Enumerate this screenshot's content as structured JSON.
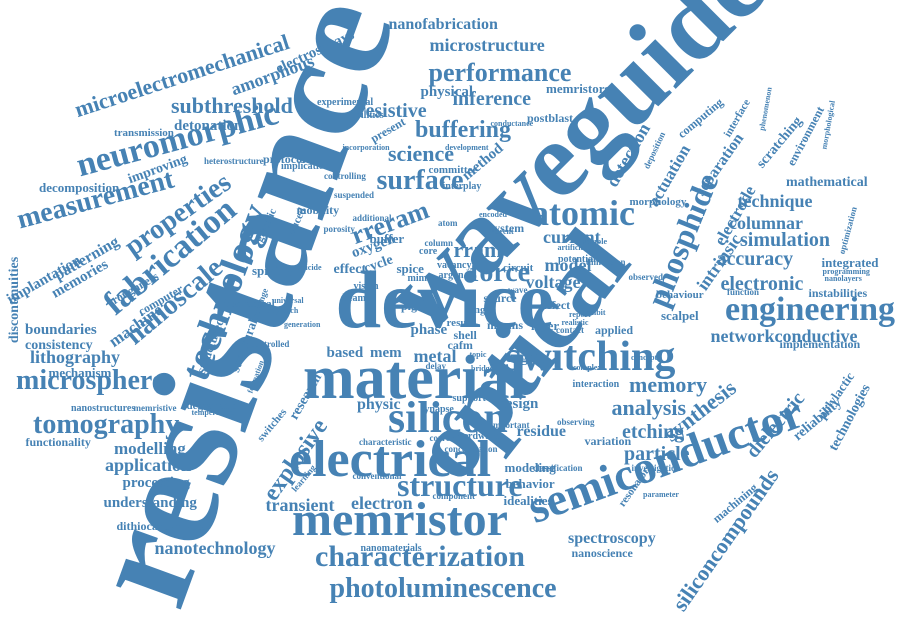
{
  "color": "#4682b4",
  "words": [
    {
      "id": "w0",
      "text": "resistance",
      "weight": 1.0
    },
    {
      "id": "w1",
      "text": "waveguide",
      "weight": 0.94
    },
    {
      "id": "w2",
      "text": "device",
      "weight": 0.9
    },
    {
      "id": "w3",
      "text": "optical",
      "weight": 0.86
    },
    {
      "id": "w4",
      "text": "material",
      "weight": 0.72
    },
    {
      "id": "w5",
      "text": "memristor",
      "weight": 0.68
    },
    {
      "id": "w6",
      "text": "semiconductor",
      "weight": 0.68
    },
    {
      "id": "w7",
      "text": "electrical",
      "weight": 0.62
    },
    {
      "id": "w8",
      "text": "silicon",
      "weight": 0.56
    },
    {
      "id": "w9",
      "text": "switching",
      "weight": 0.54
    },
    {
      "id": "w10",
      "text": "technology",
      "weight": 0.52
    },
    {
      "id": "w11",
      "text": "engineering",
      "weight": 0.5
    },
    {
      "id": "w12",
      "text": "neuromorphic",
      "weight": 0.5
    },
    {
      "id": "w13",
      "text": "structure",
      "weight": 0.5
    },
    {
      "id": "w14",
      "text": "characterization",
      "weight": 0.48
    },
    {
      "id": "w15",
      "text": "atomic",
      "weight": 0.48
    },
    {
      "id": "w16",
      "text": "phosphide",
      "weight": 0.46
    },
    {
      "id": "w17",
      "text": "fabrication",
      "weight": 0.46
    },
    {
      "id": "w18",
      "text": "microsphere",
      "weight": 0.44
    },
    {
      "id": "w19",
      "text": "photoluminescence",
      "weight": 0.42
    },
    {
      "id": "w20",
      "text": "nanoscale",
      "weight": 0.42
    },
    {
      "id": "w21",
      "text": "measurement",
      "weight": 0.42
    },
    {
      "id": "w22",
      "text": "properties",
      "weight": 0.42
    },
    {
      "id": "w23",
      "text": "microelectromechanical",
      "weight": 0.4
    },
    {
      "id": "w24",
      "text": "tomography",
      "weight": 0.4
    },
    {
      "id": "w25",
      "text": "performance",
      "weight": 0.38
    },
    {
      "id": "w26",
      "text": "surface",
      "weight": 0.38
    },
    {
      "id": "w27",
      "text": "force",
      "weight": 0.36
    },
    {
      "id": "w28",
      "text": "siliconcompounds",
      "weight": 0.34
    },
    {
      "id": "w29",
      "text": "rreram",
      "weight": 0.34
    },
    {
      "id": "w30",
      "text": "explosive",
      "weight": 0.34
    },
    {
      "id": "w31",
      "text": "synthesis",
      "weight": 0.32
    },
    {
      "id": "w32",
      "text": "subthreshold",
      "weight": 0.32
    },
    {
      "id": "w33",
      "text": "buffering",
      "weight": 0.32
    },
    {
      "id": "w34",
      "text": "memory",
      "weight": 0.3
    },
    {
      "id": "w35",
      "text": "analysis",
      "weight": 0.3
    },
    {
      "id": "w36",
      "text": "science",
      "weight": 0.3
    },
    {
      "id": "w37",
      "text": "microstructure",
      "weight": 0.28
    },
    {
      "id": "w38",
      "text": "electronic",
      "weight": 0.28
    },
    {
      "id": "w39",
      "text": "resistive",
      "weight": 0.28
    },
    {
      "id": "w40",
      "text": "inference",
      "weight": 0.28
    },
    {
      "id": "w41",
      "text": "etching",
      "weight": 0.28
    },
    {
      "id": "w42",
      "text": "rram",
      "weight": 0.28
    },
    {
      "id": "w43",
      "text": "amorphous",
      "weight": 0.27
    },
    {
      "id": "w44",
      "text": "simulation",
      "weight": 0.27
    },
    {
      "id": "w45",
      "text": "accuracy",
      "weight": 0.26
    },
    {
      "id": "w46",
      "text": "dielectric",
      "weight": 0.26
    },
    {
      "id": "w47",
      "text": "columnar",
      "weight": 0.26
    },
    {
      "id": "w48",
      "text": "networkconductive",
      "weight": 0.26
    },
    {
      "id": "w49",
      "text": "particle",
      "weight": 0.26
    },
    {
      "id": "w50",
      "text": "nanofabrication",
      "weight": 0.25
    },
    {
      "id": "w51",
      "text": "detection",
      "weight": 0.25
    },
    {
      "id": "w52",
      "text": "actuation",
      "weight": 0.24
    },
    {
      "id": "w53",
      "text": "intrinsic",
      "weight": 0.24
    },
    {
      "id": "w54",
      "text": "electrode",
      "weight": 0.24
    },
    {
      "id": "w55",
      "text": "technique",
      "weight": 0.24
    },
    {
      "id": "w56",
      "text": "lithography",
      "weight": 0.24
    },
    {
      "id": "w57",
      "text": "machine",
      "weight": 0.24
    },
    {
      "id": "w58",
      "text": "application",
      "weight": 0.24
    },
    {
      "id": "w59",
      "text": "modelling",
      "weight": 0.24
    },
    {
      "id": "w60",
      "text": "mathematical",
      "weight": 0.22
    },
    {
      "id": "w61",
      "text": "spectroscopy",
      "weight": 0.22
    },
    {
      "id": "w62",
      "text": "nanotechnology",
      "weight": 0.22
    },
    {
      "id": "w63",
      "text": "transient",
      "weight": 0.22
    },
    {
      "id": "w64",
      "text": "electron",
      "weight": 0.22
    },
    {
      "id": "w65",
      "text": "current",
      "weight": 0.22
    },
    {
      "id": "w66",
      "text": "model",
      "weight": 0.22
    },
    {
      "id": "w67",
      "text": "voltage",
      "weight": 0.22
    },
    {
      "id": "w68",
      "text": "metal",
      "weight": 0.22
    },
    {
      "id": "w69",
      "text": "boundaries",
      "weight": 0.2
    },
    {
      "id": "w70",
      "text": "memories",
      "weight": 0.2
    },
    {
      "id": "w71",
      "text": "separation",
      "weight": 0.2
    },
    {
      "id": "w72",
      "text": "processing",
      "weight": 0.2
    },
    {
      "id": "w73",
      "text": "understanding",
      "weight": 0.2
    },
    {
      "id": "w74",
      "text": "residue",
      "weight": 0.2
    },
    {
      "id": "w75",
      "text": "physic",
      "weight": 0.2
    },
    {
      "id": "w76",
      "text": "detonation",
      "weight": 0.19
    },
    {
      "id": "w77",
      "text": "physical",
      "weight": 0.19
    },
    {
      "id": "w78",
      "text": "memristors",
      "weight": 0.17
    },
    {
      "id": "w79",
      "text": "electrosprays",
      "weight": 0.19
    },
    {
      "id": "w80",
      "text": "patterning",
      "weight": 0.19
    },
    {
      "id": "w81",
      "text": "consistency",
      "weight": 0.18
    },
    {
      "id": "w82",
      "text": "implantation",
      "weight": 0.18
    },
    {
      "id": "w83",
      "text": "reliability",
      "weight": 0.18
    },
    {
      "id": "w84",
      "text": "technologies",
      "weight": 0.17
    },
    {
      "id": "w85",
      "text": "polylactic",
      "weight": 0.17
    },
    {
      "id": "w86",
      "text": "scratching",
      "weight": 0.18
    },
    {
      "id": "w87",
      "text": "environment",
      "weight": 0.17
    },
    {
      "id": "w88",
      "text": "mechanism",
      "weight": 0.17
    },
    {
      "id": "w89",
      "text": "integrated",
      "weight": 0.18
    },
    {
      "id": "w90",
      "text": "instabilities",
      "weight": 0.17
    },
    {
      "id": "w91",
      "text": "implementation",
      "weight": 0.17
    },
    {
      "id": "w92",
      "text": "discontinuities",
      "weight": 0.17
    },
    {
      "id": "w93",
      "text": "decomposition",
      "weight": 0.16
    },
    {
      "id": "w94",
      "text": "improving",
      "weight": 0.17
    },
    {
      "id": "w95",
      "text": "functionality",
      "weight": 0.16
    },
    {
      "id": "w96",
      "text": "based",
      "weight": 0.2
    },
    {
      "id": "w97",
      "text": "mem",
      "weight": 0.2
    },
    {
      "id": "w98",
      "text": "phase",
      "weight": 0.2
    },
    {
      "id": "w99",
      "text": "edge",
      "weight": 0.2
    },
    {
      "id": "w100",
      "text": "design",
      "weight": 0.2
    },
    {
      "id": "w101",
      "text": "method",
      "weight": 0.2
    },
    {
      "id": "w102",
      "text": "machining",
      "weight": 0.17
    },
    {
      "id": "w103",
      "text": "resonator",
      "weight": 0.16
    },
    {
      "id": "w104",
      "text": "dithiocarbamates",
      "weight": 0.15
    },
    {
      "id": "w105",
      "text": "nanoscience",
      "weight": 0.16
    },
    {
      "id": "w106",
      "text": "modeling",
      "weight": 0.17
    },
    {
      "id": "w107",
      "text": "behavior",
      "weight": 0.17
    },
    {
      "id": "w108",
      "text": "idealities",
      "weight": 0.17
    },
    {
      "id": "w109",
      "text": "research",
      "weight": 0.17
    },
    {
      "id": "w110",
      "text": "scalpel",
      "weight": 0.17
    },
    {
      "id": "w111",
      "text": "applied",
      "weight": 0.16
    },
    {
      "id": "w112",
      "text": "variation",
      "weight": 0.16
    },
    {
      "id": "w113",
      "text": "structured",
      "weight": 0.16
    },
    {
      "id": "w114",
      "text": "oxygen",
      "weight": 0.17
    },
    {
      "id": "w115",
      "text": "spice",
      "weight": 0.16
    },
    {
      "id": "w116",
      "text": "spiking",
      "weight": 0.15
    },
    {
      "id": "w117",
      "text": "cycle",
      "weight": 0.16
    },
    {
      "id": "w118",
      "text": "effect",
      "weight": 0.16
    },
    {
      "id": "w119",
      "text": "mobility",
      "weight": 0.14
    },
    {
      "id": "w120",
      "text": "protocol",
      "weight": 0.14
    },
    {
      "id": "w121",
      "text": "present",
      "weight": 0.15
    },
    {
      "id": "w122",
      "text": "transmission",
      "weight": 0.14
    },
    {
      "id": "w123",
      "text": "postblast",
      "weight": 0.14
    },
    {
      "id": "w124",
      "text": "computing",
      "weight": 0.14
    },
    {
      "id": "w125",
      "text": "nanomaterials",
      "weight": 0.12
    },
    {
      "id": "w126",
      "text": "computer",
      "weight": 0.14
    },
    {
      "id": "w127",
      "text": "roughness",
      "weight": 0.13
    },
    {
      "id": "w128",
      "text": "glycolic",
      "weight": 0.13
    },
    {
      "id": "w129",
      "text": "induced",
      "weight": 0.13
    },
    {
      "id": "w130",
      "text": "switches",
      "weight": 0.13
    },
    {
      "id": "w131",
      "text": "system",
      "weight": 0.14
    },
    {
      "id": "w132",
      "text": "buffer",
      "weight": 0.14
    },
    {
      "id": "w133",
      "text": "source",
      "weight": 0.13
    },
    {
      "id": "w134",
      "text": "defect",
      "weight": 0.13
    },
    {
      "id": "w135",
      "text": "result",
      "weight": 0.13
    },
    {
      "id": "w136",
      "text": "single",
      "weight": 0.13
    },
    {
      "id": "w137",
      "text": "mechanical",
      "weight": 0.13
    },
    {
      "id": "w138",
      "text": "structural",
      "weight": 0.14
    },
    {
      "id": "w139",
      "text": "experimental",
      "weight": 0.12
    },
    {
      "id": "w140",
      "text": "mobilities",
      "weight": 0.12
    },
    {
      "id": "w141",
      "text": "controlling",
      "weight": 0.12
    },
    {
      "id": "w142",
      "text": "behaviour",
      "weight": 0.12
    },
    {
      "id": "w143",
      "text": "optimization",
      "weight": 0.12
    },
    {
      "id": "w144",
      "text": "degradation",
      "weight": 0.12
    },
    {
      "id": "w145",
      "text": "nanostructures",
      "weight": 0.11
    },
    {
      "id": "w146",
      "text": "memristive",
      "weight": 0.11
    },
    {
      "id": "w147",
      "text": "heterostructure",
      "weight": 0.11
    },
    {
      "id": "w148",
      "text": "implication",
      "weight": 0.11
    },
    {
      "id": "w149",
      "text": "interface",
      "weight": 0.12
    },
    {
      "id": "w150",
      "text": "plga",
      "weight": 0.13
    },
    {
      "id": "w151",
      "text": "mocms",
      "weight": 0.13
    },
    {
      "id": "w152",
      "text": "cafm",
      "weight": 0.13
    },
    {
      "id": "w153",
      "text": "shell",
      "weight": 0.13
    },
    {
      "id": "w154",
      "text": "layer",
      "weight": 0.14
    },
    {
      "id": "w155",
      "text": "interaction",
      "weight": 0.11
    },
    {
      "id": "w156",
      "text": "classification",
      "weight": 0.1
    },
    {
      "id": "w157",
      "text": "concentration",
      "weight": 0.1
    },
    {
      "id": "w158",
      "text": "investigation",
      "weight": 0.1
    },
    {
      "id": "w159",
      "text": "hardware",
      "weight": 0.11
    },
    {
      "id": "w160",
      "text": "synapse",
      "weight": 0.11
    },
    {
      "id": "w161",
      "text": "support",
      "weight": 0.11
    },
    {
      "id": "w162",
      "text": "important",
      "weight": 0.1
    },
    {
      "id": "w163",
      "text": "observing",
      "weight": 0.1
    },
    {
      "id": "w164",
      "text": "correlated",
      "weight": 0.1
    },
    {
      "id": "w165",
      "text": "characteristic",
      "weight": 0.1
    },
    {
      "id": "w166",
      "text": "conventional",
      "weight": 0.1
    },
    {
      "id": "w167",
      "text": "component",
      "weight": 0.1
    },
    {
      "id": "w168",
      "text": "learning",
      "weight": 0.1
    },
    {
      "id": "w169",
      "text": "suspended",
      "weight": 0.1
    },
    {
      "id": "w170",
      "text": "nanolayers",
      "weight": 0.1
    },
    {
      "id": "w171",
      "text": "programming",
      "weight": 0.1
    },
    {
      "id": "w172",
      "text": "function",
      "weight": 0.1
    },
    {
      "id": "w173",
      "text": "morphology",
      "weight": 0.11
    },
    {
      "id": "w174",
      "text": "dimension",
      "weight": 0.1
    },
    {
      "id": "w175",
      "text": "observed",
      "weight": 0.1
    },
    {
      "id": "w176",
      "text": "potential",
      "weight": 0.11
    },
    {
      "id": "w177",
      "text": "circuit",
      "weight": 0.12
    },
    {
      "id": "w178",
      "text": "vacancy",
      "weight": 0.11
    },
    {
      "id": "w179",
      "text": "argon",
      "weight": 0.11
    },
    {
      "id": "w180",
      "text": "mimic",
      "weight": 0.11
    },
    {
      "id": "w181",
      "text": "beam",
      "weight": 0.11
    },
    {
      "id": "w182",
      "text": "vision",
      "weight": 0.11
    },
    {
      "id": "w183",
      "text": "core",
      "weight": 0.11
    },
    {
      "id": "w184",
      "text": "silicide",
      "weight": 0.1
    },
    {
      "id": "w185",
      "text": "additional",
      "weight": 0.1
    },
    {
      "id": "w186",
      "text": "deposition",
      "weight": 0.1
    },
    {
      "id": "w187",
      "text": "phenomenon",
      "weight": 0.09
    },
    {
      "id": "w188",
      "text": "morphological",
      "weight": 0.09
    },
    {
      "id": "w189",
      "text": "incorporation",
      "weight": 0.09
    },
    {
      "id": "w190",
      "text": "development",
      "weight": 0.09
    },
    {
      "id": "w191",
      "text": "committee",
      "weight": 0.11
    },
    {
      "id": "w192",
      "text": "conductance",
      "weight": 0.09
    },
    {
      "id": "w193",
      "text": "interplay",
      "weight": 0.1
    },
    {
      "id": "w194",
      "text": "complex",
      "weight": 0.09
    },
    {
      "id": "w195",
      "text": "parameter",
      "weight": 0.09
    },
    {
      "id": "w196",
      "text": "concept",
      "weight": 0.09
    },
    {
      "id": "w197",
      "text": "report",
      "weight": 0.09
    },
    {
      "id": "w198",
      "text": "realistic",
      "weight": 0.09
    },
    {
      "id": "w199",
      "text": "universal",
      "weight": 0.09
    },
    {
      "id": "w200",
      "text": "approach",
      "weight": 0.09
    },
    {
      "id": "w201",
      "text": "controlled",
      "weight": 0.09
    },
    {
      "id": "w202",
      "text": "generation",
      "weight": 0.08
    },
    {
      "id": "w203",
      "text": "exchange",
      "weight": 0.09
    },
    {
      "id": "w204",
      "text": "temperature",
      "weight": 0.08
    },
    {
      "id": "w205",
      "text": "formation",
      "weight": 0.08
    },
    {
      "id": "w206",
      "text": "porosity",
      "weight": 0.09
    },
    {
      "id": "w207",
      "text": "encoded",
      "weight": 0.08
    },
    {
      "id": "w208",
      "text": "different",
      "weight": 0.08
    },
    {
      "id": "w209",
      "text": "bridge",
      "weight": 0.08
    },
    {
      "id": "w210",
      "text": "topic",
      "weight": 0.08
    },
    {
      "id": "w211",
      "text": "sample",
      "weight": 0.08
    },
    {
      "id": "w212",
      "text": "contact",
      "weight": 0.09
    },
    {
      "id": "w213",
      "text": "exhibit",
      "weight": 0.08
    },
    {
      "id": "w214",
      "text": "wave",
      "weight": 0.09
    },
    {
      "id": "w215",
      "text": "delay",
      "weight": 0.09
    },
    {
      "id": "w216",
      "text": "atom",
      "weight": 0.09
    },
    {
      "id": "w217",
      "text": "column",
      "weight": 0.09
    },
    {
      "id": "w218",
      "text": "artificial",
      "weight": 0.08
    }
  ]
}
